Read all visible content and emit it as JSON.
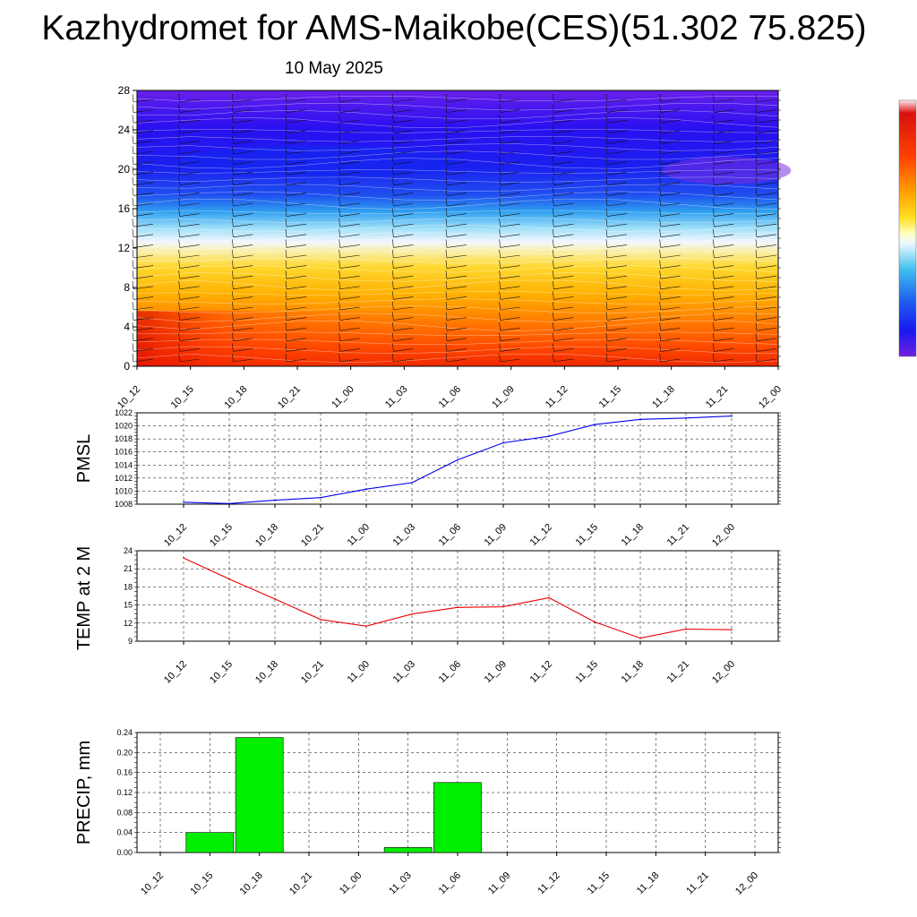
{
  "header": {
    "title": "Kazhydromet for AMS-Maikobe(CES)(51.302 75.825)",
    "date": "10 May 2025"
  },
  "colors": {
    "pmsl_line": "#0000ee",
    "temp_line": "#ee0000",
    "precip_bar": "#00ee00",
    "grid": "#000000"
  },
  "chart_data": [
    {
      "type": "heatmap",
      "title": "",
      "x": [
        "10_12",
        "10_15",
        "10_18",
        "10_21",
        "11_00",
        "11_03",
        "11_06",
        "11_09",
        "11_12",
        "11_15",
        "11_18",
        "11_21",
        "12_00"
      ],
      "ylim": [
        0,
        28
      ],
      "yticks": [
        0,
        4,
        8,
        12,
        16,
        20,
        24,
        28
      ],
      "colorbar": "labels not shown",
      "overlay": "wind barbs"
    },
    {
      "type": "line",
      "ylabel": "PMSL",
      "x": [
        "10_12",
        "10_15",
        "10_18",
        "10_21",
        "11_00",
        "11_03",
        "11_06",
        "11_09",
        "11_12",
        "11_15",
        "11_18",
        "11_21",
        "12_00"
      ],
      "values": [
        1008.3,
        1008.1,
        1008.6,
        1009.0,
        1010.3,
        1011.3,
        1014.8,
        1017.4,
        1018.4,
        1020.2,
        1021.0,
        1021.2,
        1021.5
      ],
      "ylim": [
        1008,
        1022
      ],
      "yticks": [
        "1008",
        "1010",
        "1012",
        "1014",
        "1016",
        "1018",
        "1020",
        "1022"
      ],
      "grid": true
    },
    {
      "type": "line",
      "ylabel": "TEMP at 2 M",
      "x": [
        "10_12",
        "10_15",
        "10_18",
        "10_21",
        "11_00",
        "11_03",
        "11_06",
        "11_09",
        "11_12",
        "11_15",
        "11_18",
        "11_21",
        "12_00"
      ],
      "values": [
        22.8,
        19.3,
        16.0,
        12.6,
        11.5,
        13.5,
        14.6,
        14.7,
        16.2,
        12.2,
        9.5,
        11.0,
        10.9
      ],
      "ylim": [
        9,
        24
      ],
      "yticks": [
        "9",
        "12",
        "15",
        "18",
        "21",
        "24"
      ],
      "grid": true
    },
    {
      "type": "bar",
      "ylabel": "PRECIP, mm",
      "categories": [
        "10_12",
        "10_15",
        "10_18",
        "10_21",
        "11_00",
        "11_03",
        "11_06",
        "11_09",
        "11_12",
        "11_15",
        "11_18",
        "11_21",
        "12_00"
      ],
      "values": [
        0,
        0.04,
        0.23,
        0,
        0,
        0.01,
        0.14,
        0,
        0,
        0,
        0,
        0,
        0
      ],
      "ylim": [
        0,
        0.24
      ],
      "yticks": [
        "0.00",
        "0.04",
        "0.08",
        "0.12",
        "0.16",
        "0.20",
        "0.24"
      ],
      "grid": true
    }
  ]
}
